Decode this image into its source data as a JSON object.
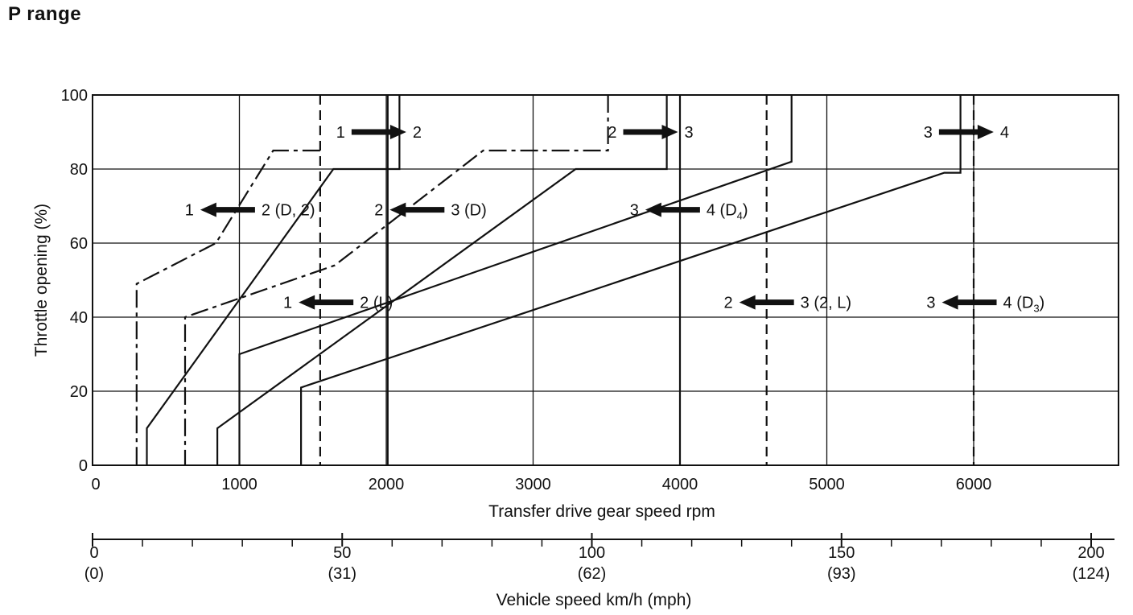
{
  "title": "P range",
  "chart_data": {
    "type": "line",
    "title": "P range",
    "xlabel": "Transfer drive gear speed  rpm",
    "ylabel": "Throttle opening (%)",
    "xlim": [
      0,
      7000
    ],
    "ylim": [
      0,
      100
    ],
    "x_ticks": [
      0,
      1000,
      2000,
      3000,
      4000,
      5000,
      6000
    ],
    "y_ticks": [
      0,
      20,
      40,
      60,
      80,
      100
    ],
    "grid": true,
    "secondary_axis": {
      "label": "Vehicle speed  km/h (mph)",
      "ticks": [
        {
          "kmh": "0",
          "mph": "(0)",
          "rpm": 0
        },
        {
          "kmh": "50",
          "mph": "(31)",
          "rpm": 1700
        },
        {
          "kmh": "100",
          "mph": "(62)",
          "rpm": 3400
        },
        {
          "kmh": "150",
          "mph": "(93)",
          "rpm": 5100
        },
        {
          "kmh": "200",
          "mph": "(124)",
          "rpm": 6800
        }
      ],
      "minor_tick_rpm": [
        340,
        680,
        1020,
        1360,
        2040,
        2380,
        2720,
        3060,
        3740,
        4080,
        4420,
        4760,
        5440,
        5780,
        6120,
        6460
      ]
    },
    "series": [
      {
        "style": "solid",
        "points": [
          [
            2090,
            100
          ],
          [
            2090,
            80
          ],
          [
            1640,
            80
          ],
          [
            370,
            10
          ],
          [
            370,
            0
          ]
        ]
      },
      {
        "style": "dashdot",
        "points": [
          [
            1550,
            85
          ],
          [
            1230,
            85
          ],
          [
            840,
            60
          ],
          [
            300,
            49
          ],
          [
            300,
            0
          ]
        ]
      },
      {
        "style": "solid",
        "points": [
          [
            3910,
            100
          ],
          [
            3910,
            80
          ],
          [
            3290,
            80
          ],
          [
            850,
            10
          ],
          [
            850,
            0
          ]
        ]
      },
      {
        "style": "dashdot",
        "points": [
          [
            3510,
            100
          ],
          [
            3510,
            85
          ],
          [
            2660,
            85
          ],
          [
            1650,
            54
          ],
          [
            630,
            40
          ],
          [
            630,
            0
          ]
        ]
      },
      {
        "style": "solid",
        "points": [
          [
            4760,
            100
          ],
          [
            4760,
            82
          ],
          [
            1000,
            30
          ],
          [
            1000,
            0
          ]
        ]
      },
      {
        "style": "solid",
        "points": [
          [
            5910,
            100
          ],
          [
            5910,
            79
          ],
          [
            5800,
            79
          ],
          [
            1420,
            21
          ],
          [
            1420,
            0
          ]
        ]
      },
      {
        "style": "solid",
        "points": [
          [
            2010,
            100
          ],
          [
            2010,
            0
          ]
        ]
      },
      {
        "style": "solid",
        "points": [
          [
            4000,
            100
          ],
          [
            4000,
            0
          ]
        ]
      },
      {
        "style": "dashed",
        "points": [
          [
            1550,
            100
          ],
          [
            1550,
            0
          ]
        ]
      },
      {
        "style": "dashed",
        "points": [
          [
            4590,
            100
          ],
          [
            4590,
            0
          ]
        ]
      },
      {
        "style": "dashed",
        "points": [
          [
            6000,
            100
          ],
          [
            6000,
            0
          ]
        ]
      }
    ],
    "annotations": [
      {
        "from": "1",
        "to": "2",
        "direction": "right",
        "x": 1950,
        "y": 90
      },
      {
        "from": "2",
        "to": "3",
        "direction": "right",
        "x": 3800,
        "y": 90
      },
      {
        "from": "3",
        "to": "4",
        "direction": "right",
        "x": 5950,
        "y": 90
      },
      {
        "from": "1",
        "to": "2 (D, 2)",
        "direction": "left",
        "x": 920,
        "y": 69
      },
      {
        "from": "2",
        "to": "3 (D)",
        "direction": "left",
        "x": 2210,
        "y": 69
      },
      {
        "from": "3",
        "to": "4 (D",
        "sub": "4",
        "to_close": ")",
        "direction": "left",
        "x": 3950,
        "y": 69
      },
      {
        "from": "1",
        "to": "2 (L)",
        "direction": "left",
        "x": 1590,
        "y": 44
      },
      {
        "from": "2",
        "to": "3 (2, L)",
        "direction": "left",
        "x": 4590,
        "y": 44
      },
      {
        "from": "3",
        "to": "4 (D",
        "sub": "3",
        "to_close": ")",
        "direction": "left",
        "x": 5970,
        "y": 44
      }
    ]
  }
}
